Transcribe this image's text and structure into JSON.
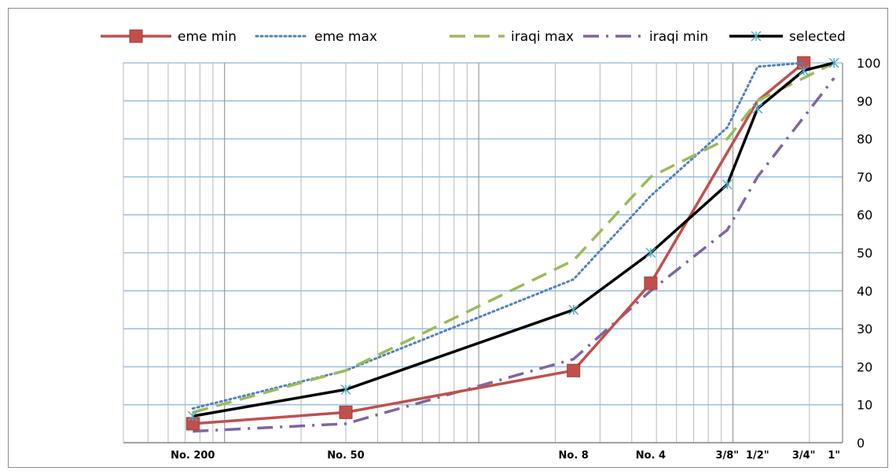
{
  "chart_data": {
    "type": "line",
    "x_axis_scale": "log",
    "x_range_mm": [
      0.04,
      27
    ],
    "y_range": [
      0,
      100
    ],
    "y_ticks": [
      0,
      10,
      20,
      30,
      40,
      50,
      60,
      70,
      80,
      90,
      100
    ],
    "y_axis_position": "right",
    "grid": true,
    "legend_position": "top",
    "x_tick_labels": [
      {
        "label": "No. 200",
        "x": 0.075
      },
      {
        "label": "No. 50",
        "x": 0.3
      },
      {
        "label": "No. 8",
        "x": 2.36
      },
      {
        "label": "No. 4",
        "x": 4.75
      },
      {
        "label": "3/8\"",
        "x": 9.5
      },
      {
        "label": "1/2\"",
        "x": 12.5
      },
      {
        "label": "3/4\"",
        "x": 19
      },
      {
        "label": "1\"",
        "x": 25
      }
    ],
    "series": [
      {
        "name": "eme min",
        "color": "#c0504d",
        "style": "solid",
        "marker": "square",
        "points": [
          [
            0.075,
            5
          ],
          [
            0.3,
            8
          ],
          [
            2.36,
            19
          ],
          [
            4.75,
            42
          ],
          [
            12.5,
            90
          ],
          [
            19,
            100
          ]
        ],
        "marker_indices": [
          0,
          1,
          2,
          3,
          5
        ]
      },
      {
        "name": "eme max",
        "color": "#4f81bd",
        "style": "dotted",
        "marker": "none",
        "points": [
          [
            0.075,
            9
          ],
          [
            0.3,
            19
          ],
          [
            2.36,
            43
          ],
          [
            4.75,
            65
          ],
          [
            9.5,
            83
          ],
          [
            12.5,
            99
          ],
          [
            19,
            100
          ]
        ]
      },
      {
        "name": "iraqi max",
        "color": "#9bbb59",
        "style": "dashed",
        "marker": "none",
        "points": [
          [
            0.075,
            8
          ],
          [
            0.3,
            19
          ],
          [
            2.36,
            48
          ],
          [
            4.75,
            70
          ],
          [
            9.5,
            80
          ],
          [
            12.5,
            90
          ],
          [
            25,
            100
          ]
        ]
      },
      {
        "name": "iraqi min",
        "color": "#8064a2",
        "style": "dashdot",
        "marker": "none",
        "points": [
          [
            0.075,
            3
          ],
          [
            0.3,
            5
          ],
          [
            2.36,
            22
          ],
          [
            4.75,
            40
          ],
          [
            9.5,
            56
          ],
          [
            12.5,
            70
          ],
          [
            25,
            96
          ]
        ]
      },
      {
        "name": "selected",
        "color": "#000000",
        "style": "solid",
        "marker": "star",
        "points": [
          [
            0.075,
            7
          ],
          [
            0.3,
            14
          ],
          [
            2.36,
            35
          ],
          [
            4.75,
            50
          ],
          [
            9.5,
            68
          ],
          [
            12.5,
            88
          ],
          [
            19,
            98
          ],
          [
            25,
            100
          ]
        ]
      }
    ]
  }
}
